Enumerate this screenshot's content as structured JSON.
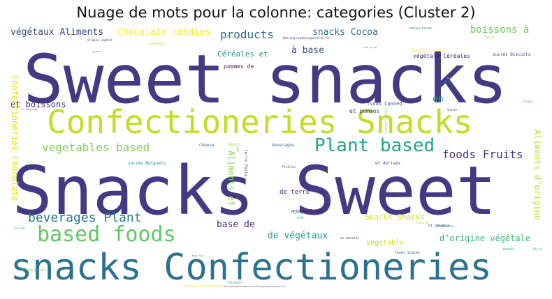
{
  "title": "Nuage de mots pour la colonne: categories (Cluster 2)",
  "words": [
    {
      "text": "Sweet snacks",
      "color": "#443983"
    },
    {
      "text": "Snacks Sweet",
      "color": "#443983"
    },
    {
      "text": "Confectioneries Snacks",
      "color": "#bddf26"
    },
    {
      "text": "snacks Confectioneries",
      "color": "#2c728e"
    },
    {
      "text": "Plant based",
      "color": "#22a884"
    },
    {
      "text": "based foods",
      "color": "#5ec962"
    },
    {
      "text": "beverages Plant",
      "color": "#2a788e"
    },
    {
      "text": "vegetables based",
      "color": "#7ad151"
    },
    {
      "text": "foods Fruits",
      "color": "#46337e"
    },
    {
      "text": "végétaux Aliments",
      "color": "#3e4989"
    },
    {
      "text": "Chocolate candies",
      "color": "#fde725"
    },
    {
      "text": "products",
      "color": "#31688e"
    },
    {
      "text": "snacks Cocoa",
      "color": "#2c728e"
    },
    {
      "text": "boissons à",
      "color": "#6ccd5a"
    },
    {
      "text": "Céréales et",
      "color": "#21918c"
    },
    {
      "text": "à base",
      "color": "#3b528b"
    },
    {
      "text": "et boissons",
      "color": "#482878"
    },
    {
      "text": "en",
      "color": "#20a486"
    },
    {
      "text": "base de",
      "color": "#472d7b"
    },
    {
      "text": "de végétaux",
      "color": "#1f9e89"
    },
    {
      "text": "d’origine végétale",
      "color": "#35b779"
    },
    {
      "text": "Snacks Snacks",
      "color": "#d0e11c"
    },
    {
      "text": "vegetable",
      "color": "#c8e020"
    },
    {
      "text": "de terre",
      "color": "#48186a"
    },
    {
      "text": "pommes de",
      "color": "#471365"
    },
    {
      "text": "et pommes",
      "color": "#433e85"
    },
    {
      "text": "foods Canned",
      "color": "#3a548c"
    },
    {
      "text": "végétale Céréales",
      "color": "#482475"
    },
    {
      "text": "Confectioneries Chocolate",
      "color": "#dde318"
    },
    {
      "text": "Aliments et",
      "color": "#84d44b"
    },
    {
      "text": "Aliments d’origine",
      "color": "#b5de2b"
    },
    {
      "text": "Cheese",
      "color": "#30698e"
    },
    {
      "text": "beverages",
      "color": "#2e6e8e"
    },
    {
      "text": "sucrés Beignets",
      "color": "#25848e"
    },
    {
      "text": "et dérivés",
      "color": "#3f4788"
    },
    {
      "text": "Pickles",
      "color": "#2a788e"
    },
    {
      "text": "Meat",
      "color": "#a2da37"
    },
    {
      "text": "terre Pains",
      "color": "#39568c"
    },
    {
      "text": "Fresh",
      "color": "#5ec962"
    },
    {
      "text": "potatoes Breads",
      "color": "#481769"
    },
    {
      "text": "et gâteaux",
      "color": "#3f4889"
    },
    {
      "text": "Coffee",
      "color": "#21918c"
    },
    {
      "text": "Café",
      "color": "#2ab07f"
    },
    {
      "text": "Capsules",
      "color": "#c2df23"
    },
    {
      "text": "sandwiches",
      "color": "#277f8e"
    },
    {
      "text": "au chocolat",
      "color": "#471164"
    },
    {
      "text": "foods Snacks",
      "color": "#3d4e8a"
    },
    {
      "text": "Cereals",
      "color": "#1fa088"
    },
    {
      "text": "Condiments",
      "color": "#a8db34"
    },
    {
      "text": "Pains",
      "color": "#65cb5e"
    },
    {
      "text": "Gâteaux Donuts",
      "color": "#2f6c8e"
    },
    {
      "text": "Fruit",
      "color": "#aadc32"
    },
    {
      "text": "Beignets sucrés",
      "color": "#fde725"
    },
    {
      "text": "sucrés Biscuits",
      "color": "#414487"
    },
    {
      "text": "Biscuits et",
      "color": "#6ece58"
    },
    {
      "text": "Pastries",
      "color": "#35b779"
    },
    {
      "text": "Dried",
      "color": "#d8e219"
    },
    {
      "text": "Frozen",
      "color": "#29af7f"
    },
    {
      "text": "Snacks",
      "color": "#3c508b"
    },
    {
      "text": "Soups",
      "color": "#3b528b"
    },
    {
      "text": "Jams",
      "color": "#46327e"
    },
    {
      "text": "Nuts",
      "color": "#6ece58"
    },
    {
      "text": "Sauces",
      "color": "#86d549"
    },
    {
      "text": "Dairies",
      "color": "#31b57b"
    },
    {
      "text": "Spreads",
      "color": "#4ac16d"
    },
    {
      "text": "Waffles",
      "color": "#48c16e"
    },
    {
      "text": "Boulangerie Viennoiserie",
      "color": "#fde725"
    },
    {
      "text": "Nahrungsergänzungsmittel Nahrungsergänzungsmittel",
      "color": "#472c7a"
    },
    {
      "text": "Nahrungsergänzungsmittel für",
      "color": "#3e4a89"
    },
    {
      "text": "origine végétal",
      "color": "#46337e"
    },
    {
      "text": "sans gluten",
      "color": "#2a788e"
    },
    {
      "text": "gâteaux Gâteaux",
      "color": "#9dd93b"
    },
    {
      "text": "Bonbons",
      "color": "#2d718e"
    },
    {
      "text": "sucrées",
      "color": "#35b779"
    },
    {
      "text": "für Babykolben",
      "color": "#482575"
    },
    {
      "text": "au lait",
      "color": "#287c8e"
    },
    {
      "text": "Baby food",
      "color": "#3d4e8a"
    }
  ]
}
